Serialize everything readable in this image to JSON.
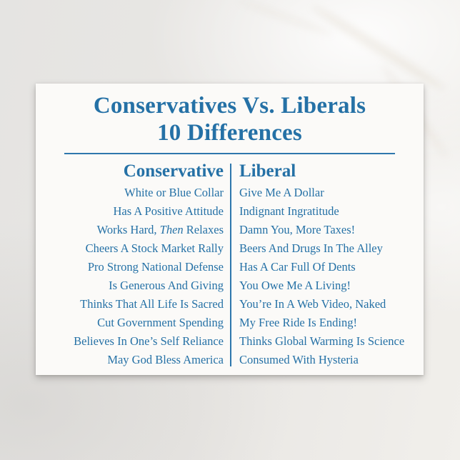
{
  "colors": {
    "accent_blue": "#2571a6",
    "card_background": "#fbfaf8",
    "surface": "#e9e7e4"
  },
  "postcard": {
    "title": {
      "line1": "Conservatives Vs. Liberals",
      "line2": "10 Differences"
    },
    "headers": {
      "conservative": "Conservative",
      "liberal": "Liberal"
    },
    "rows": [
      {
        "conservative": "White or Blue Collar",
        "liberal": "Give Me A Dollar"
      },
      {
        "conservative": "Has A Positive Attitude",
        "liberal": "Indignant Ingratitude"
      },
      {
        "conservative_parts": {
          "pre": "Works Hard, ",
          "italic": "Then",
          "post": " Relaxes"
        },
        "liberal": "Damn You, More Taxes!"
      },
      {
        "conservative": "Cheers A Stock Market Rally",
        "liberal": "Beers And Drugs In The Alley"
      },
      {
        "conservative": "Pro Strong National Defense",
        "liberal": "Has A Car Full Of Dents"
      },
      {
        "conservative": "Is Generous And Giving",
        "liberal": "You Owe Me A Living!"
      },
      {
        "conservative": "Thinks That All Life Is Sacred",
        "liberal": "You’re In A Web Video, Naked"
      },
      {
        "conservative": "Cut Government Spending",
        "liberal": "My Free Ride Is Ending!"
      },
      {
        "conservative": "Believes In One’s Self Reliance",
        "liberal": "Thinks Global Warming Is Science"
      },
      {
        "conservative": "May God Bless America",
        "liberal": "Consumed With Hysteria"
      }
    ]
  }
}
